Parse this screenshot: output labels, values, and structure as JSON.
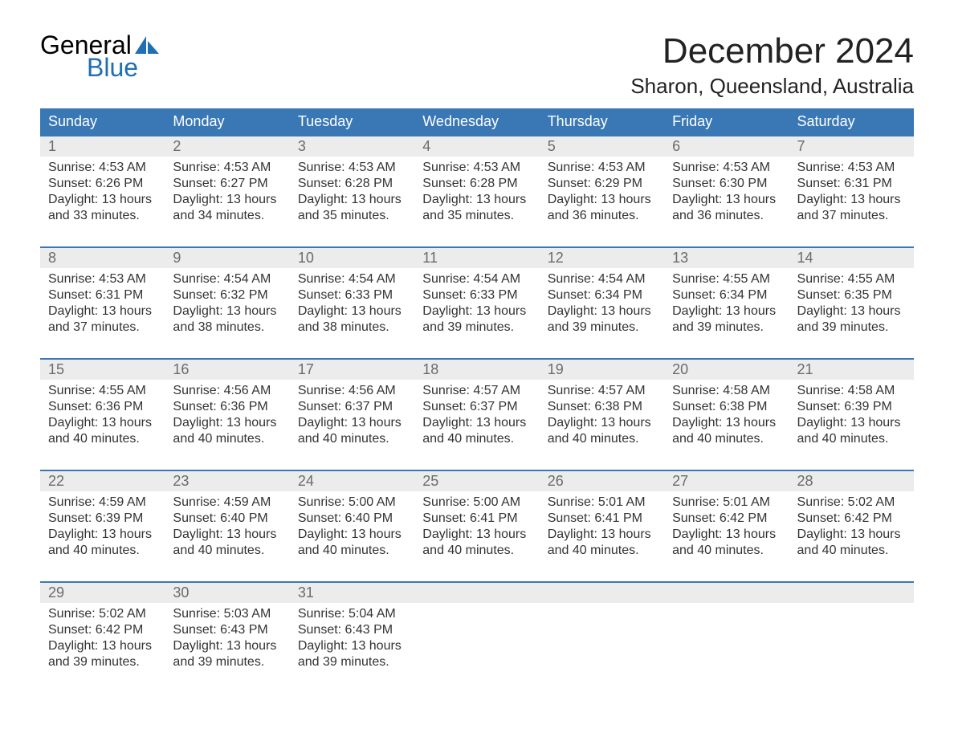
{
  "logo": {
    "word1": "General",
    "word2": "Blue",
    "sail_color": "#1f6fb2"
  },
  "title": "December 2024",
  "location": "Sharon, Queensland, Australia",
  "header_bg": "#3a78b5",
  "header_fg": "#ffffff",
  "daynum_bg": "#ececec",
  "border_color": "#3a78b5",
  "text_color": "#333333",
  "columns": [
    "Sunday",
    "Monday",
    "Tuesday",
    "Wednesday",
    "Thursday",
    "Friday",
    "Saturday"
  ],
  "weeks": [
    [
      {
        "n": "1",
        "sunrise": "Sunrise: 4:53 AM",
        "sunset": "Sunset: 6:26 PM",
        "d1": "Daylight: 13 hours",
        "d2": "and 33 minutes."
      },
      {
        "n": "2",
        "sunrise": "Sunrise: 4:53 AM",
        "sunset": "Sunset: 6:27 PM",
        "d1": "Daylight: 13 hours",
        "d2": "and 34 minutes."
      },
      {
        "n": "3",
        "sunrise": "Sunrise: 4:53 AM",
        "sunset": "Sunset: 6:28 PM",
        "d1": "Daylight: 13 hours",
        "d2": "and 35 minutes."
      },
      {
        "n": "4",
        "sunrise": "Sunrise: 4:53 AM",
        "sunset": "Sunset: 6:28 PM",
        "d1": "Daylight: 13 hours",
        "d2": "and 35 minutes."
      },
      {
        "n": "5",
        "sunrise": "Sunrise: 4:53 AM",
        "sunset": "Sunset: 6:29 PM",
        "d1": "Daylight: 13 hours",
        "d2": "and 36 minutes."
      },
      {
        "n": "6",
        "sunrise": "Sunrise: 4:53 AM",
        "sunset": "Sunset: 6:30 PM",
        "d1": "Daylight: 13 hours",
        "d2": "and 36 minutes."
      },
      {
        "n": "7",
        "sunrise": "Sunrise: 4:53 AM",
        "sunset": "Sunset: 6:31 PM",
        "d1": "Daylight: 13 hours",
        "d2": "and 37 minutes."
      }
    ],
    [
      {
        "n": "8",
        "sunrise": "Sunrise: 4:53 AM",
        "sunset": "Sunset: 6:31 PM",
        "d1": "Daylight: 13 hours",
        "d2": "and 37 minutes."
      },
      {
        "n": "9",
        "sunrise": "Sunrise: 4:54 AM",
        "sunset": "Sunset: 6:32 PM",
        "d1": "Daylight: 13 hours",
        "d2": "and 38 minutes."
      },
      {
        "n": "10",
        "sunrise": "Sunrise: 4:54 AM",
        "sunset": "Sunset: 6:33 PM",
        "d1": "Daylight: 13 hours",
        "d2": "and 38 minutes."
      },
      {
        "n": "11",
        "sunrise": "Sunrise: 4:54 AM",
        "sunset": "Sunset: 6:33 PM",
        "d1": "Daylight: 13 hours",
        "d2": "and 39 minutes."
      },
      {
        "n": "12",
        "sunrise": "Sunrise: 4:54 AM",
        "sunset": "Sunset: 6:34 PM",
        "d1": "Daylight: 13 hours",
        "d2": "and 39 minutes."
      },
      {
        "n": "13",
        "sunrise": "Sunrise: 4:55 AM",
        "sunset": "Sunset: 6:34 PM",
        "d1": "Daylight: 13 hours",
        "d2": "and 39 minutes."
      },
      {
        "n": "14",
        "sunrise": "Sunrise: 4:55 AM",
        "sunset": "Sunset: 6:35 PM",
        "d1": "Daylight: 13 hours",
        "d2": "and 39 minutes."
      }
    ],
    [
      {
        "n": "15",
        "sunrise": "Sunrise: 4:55 AM",
        "sunset": "Sunset: 6:36 PM",
        "d1": "Daylight: 13 hours",
        "d2": "and 40 minutes."
      },
      {
        "n": "16",
        "sunrise": "Sunrise: 4:56 AM",
        "sunset": "Sunset: 6:36 PM",
        "d1": "Daylight: 13 hours",
        "d2": "and 40 minutes."
      },
      {
        "n": "17",
        "sunrise": "Sunrise: 4:56 AM",
        "sunset": "Sunset: 6:37 PM",
        "d1": "Daylight: 13 hours",
        "d2": "and 40 minutes."
      },
      {
        "n": "18",
        "sunrise": "Sunrise: 4:57 AM",
        "sunset": "Sunset: 6:37 PM",
        "d1": "Daylight: 13 hours",
        "d2": "and 40 minutes."
      },
      {
        "n": "19",
        "sunrise": "Sunrise: 4:57 AM",
        "sunset": "Sunset: 6:38 PM",
        "d1": "Daylight: 13 hours",
        "d2": "and 40 minutes."
      },
      {
        "n": "20",
        "sunrise": "Sunrise: 4:58 AM",
        "sunset": "Sunset: 6:38 PM",
        "d1": "Daylight: 13 hours",
        "d2": "and 40 minutes."
      },
      {
        "n": "21",
        "sunrise": "Sunrise: 4:58 AM",
        "sunset": "Sunset: 6:39 PM",
        "d1": "Daylight: 13 hours",
        "d2": "and 40 minutes."
      }
    ],
    [
      {
        "n": "22",
        "sunrise": "Sunrise: 4:59 AM",
        "sunset": "Sunset: 6:39 PM",
        "d1": "Daylight: 13 hours",
        "d2": "and 40 minutes."
      },
      {
        "n": "23",
        "sunrise": "Sunrise: 4:59 AM",
        "sunset": "Sunset: 6:40 PM",
        "d1": "Daylight: 13 hours",
        "d2": "and 40 minutes."
      },
      {
        "n": "24",
        "sunrise": "Sunrise: 5:00 AM",
        "sunset": "Sunset: 6:40 PM",
        "d1": "Daylight: 13 hours",
        "d2": "and 40 minutes."
      },
      {
        "n": "25",
        "sunrise": "Sunrise: 5:00 AM",
        "sunset": "Sunset: 6:41 PM",
        "d1": "Daylight: 13 hours",
        "d2": "and 40 minutes."
      },
      {
        "n": "26",
        "sunrise": "Sunrise: 5:01 AM",
        "sunset": "Sunset: 6:41 PM",
        "d1": "Daylight: 13 hours",
        "d2": "and 40 minutes."
      },
      {
        "n": "27",
        "sunrise": "Sunrise: 5:01 AM",
        "sunset": "Sunset: 6:42 PM",
        "d1": "Daylight: 13 hours",
        "d2": "and 40 minutes."
      },
      {
        "n": "28",
        "sunrise": "Sunrise: 5:02 AM",
        "sunset": "Sunset: 6:42 PM",
        "d1": "Daylight: 13 hours",
        "d2": "and 40 minutes."
      }
    ],
    [
      {
        "n": "29",
        "sunrise": "Sunrise: 5:02 AM",
        "sunset": "Sunset: 6:42 PM",
        "d1": "Daylight: 13 hours",
        "d2": "and 39 minutes."
      },
      {
        "n": "30",
        "sunrise": "Sunrise: 5:03 AM",
        "sunset": "Sunset: 6:43 PM",
        "d1": "Daylight: 13 hours",
        "d2": "and 39 minutes."
      },
      {
        "n": "31",
        "sunrise": "Sunrise: 5:04 AM",
        "sunset": "Sunset: 6:43 PM",
        "d1": "Daylight: 13 hours",
        "d2": "and 39 minutes."
      },
      null,
      null,
      null,
      null
    ]
  ]
}
